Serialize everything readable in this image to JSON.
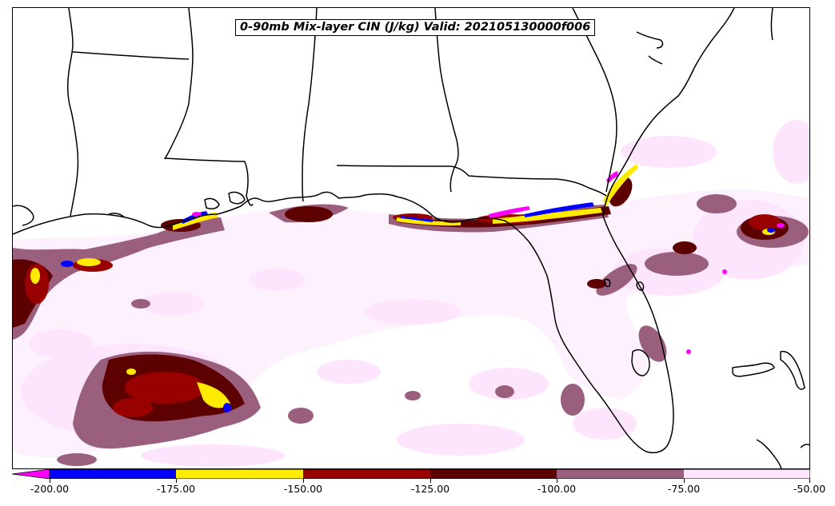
{
  "title": "0-90mb Mix-layer CIN (J/kg) Valid: 202105130000f006",
  "colorbar": {
    "ticks": [
      "-200.00",
      "-175.00",
      "-150.00",
      "-125.00",
      "-100.00",
      "-75.00",
      "-50.00"
    ],
    "bins": [
      {
        "range": "< -200",
        "color": "#ff00ff"
      },
      {
        "range": "-200 to -175",
        "color": "#0000ff"
      },
      {
        "range": "-175 to -150",
        "color": "#ffeb00"
      },
      {
        "range": "-150 to -125",
        "color": "#990000"
      },
      {
        "range": "-125 to -100",
        "color": "#5c0000"
      },
      {
        "range": "-100 to -75",
        "color": "#9b5f7e"
      },
      {
        "range": "-75 to -50",
        "color": "#fde6fd"
      }
    ]
  },
  "map": {
    "region": "US Gulf Coast and Florida",
    "field": "0-90mb mix-layer CIN",
    "units": "J/kg"
  }
}
